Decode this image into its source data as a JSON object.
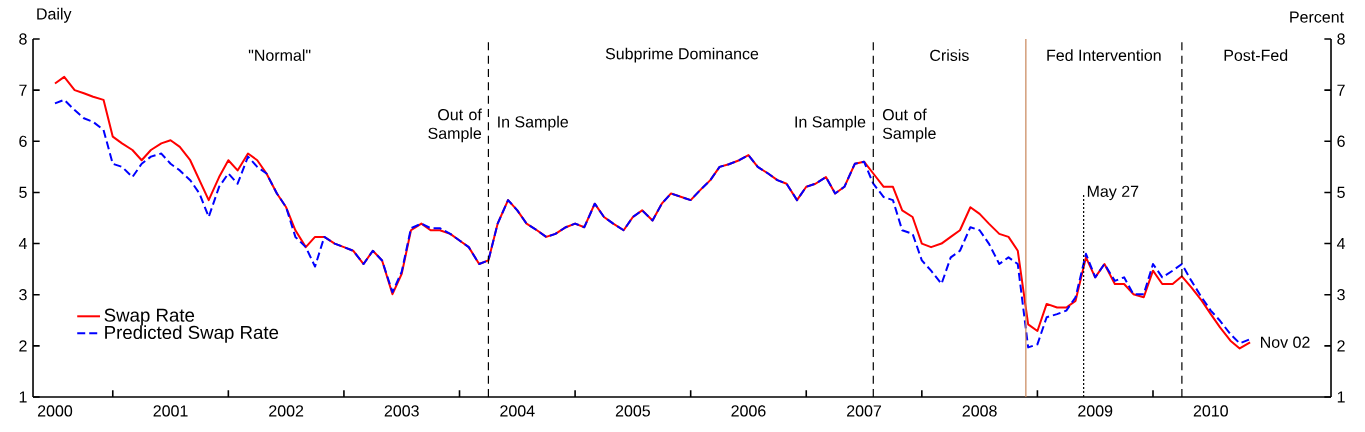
{
  "chart_data": {
    "type": "line",
    "ylabel": "Daily",
    "y2label": "Percent",
    "x": [
      "2000-07",
      "2000-08",
      "2000-09",
      "2000-10",
      "2000-11",
      "2000-12",
      "2001-01",
      "2001-02",
      "2001-03",
      "2001-04",
      "2001-05",
      "2001-06",
      "2001-07",
      "2001-08",
      "2001-09",
      "2001-10",
      "2001-11",
      "2001-12",
      "2002-01",
      "2002-02",
      "2002-03",
      "2002-04",
      "2002-05",
      "2002-06",
      "2002-07",
      "2002-08",
      "2002-09",
      "2002-10",
      "2002-11",
      "2002-12",
      "2003-01",
      "2003-02",
      "2003-03",
      "2003-04",
      "2003-05",
      "2003-06",
      "2003-07",
      "2003-08",
      "2003-09",
      "2003-10",
      "2003-11",
      "2003-12",
      "2004-01",
      "2004-02",
      "2004-03",
      "2004-04",
      "2004-05",
      "2004-06",
      "2004-07",
      "2004-08",
      "2004-09",
      "2004-10",
      "2004-11",
      "2004-12",
      "2005-01",
      "2005-02",
      "2005-03",
      "2005-04",
      "2005-05",
      "2005-06",
      "2005-07",
      "2005-08",
      "2005-09",
      "2005-10",
      "2005-11",
      "2005-12",
      "2006-01",
      "2006-02",
      "2006-03",
      "2006-04",
      "2006-05",
      "2006-06",
      "2006-07",
      "2006-08",
      "2006-09",
      "2006-10",
      "2006-11",
      "2006-12",
      "2007-01",
      "2007-02",
      "2007-03",
      "2007-04",
      "2007-05",
      "2007-06",
      "2007-07",
      "2007-08",
      "2007-09",
      "2007-10",
      "2007-11",
      "2007-12",
      "2008-01",
      "2008-02",
      "2008-03",
      "2008-04",
      "2008-05",
      "2008-06",
      "2008-07",
      "2008-08",
      "2008-09",
      "2008-10",
      "2008-11",
      "2008-12",
      "2009-01",
      "2009-02",
      "2009-03",
      "2009-04",
      "2009-05",
      "2009-06",
      "2009-07",
      "2009-08",
      "2009-09",
      "2009-10",
      "2009-11",
      "2009-12",
      "2010-01",
      "2010-02",
      "2010-03",
      "2010-04",
      "2010-05",
      "2010-06",
      "2010-07",
      "2010-08",
      "2010-09",
      "2010-10",
      "2010-11-02"
    ],
    "series": [
      {
        "name": "Swap Rate",
        "color": "#ff0000",
        "line_style": "solid",
        "values": [
          7.13,
          7.26,
          7.0,
          6.94,
          6.87,
          6.81,
          6.09,
          5.96,
          5.83,
          5.63,
          5.83,
          5.96,
          6.02,
          5.89,
          5.63,
          5.24,
          4.85,
          5.3,
          5.63,
          5.43,
          5.76,
          5.63,
          5.37,
          4.98,
          4.71,
          4.26,
          3.93,
          4.13,
          4.13,
          4.0,
          3.93,
          3.86,
          3.6,
          3.86,
          3.67,
          3.01,
          3.41,
          4.26,
          4.39,
          4.26,
          4.26,
          4.19,
          4.06,
          3.93,
          3.6,
          3.67,
          4.39,
          4.85,
          4.65,
          4.39,
          4.26,
          4.13,
          4.19,
          4.32,
          4.39,
          4.32,
          4.78,
          4.52,
          4.39,
          4.26,
          4.52,
          4.65,
          4.45,
          4.78,
          4.98,
          4.91,
          4.85,
          5.04,
          5.24,
          5.5,
          5.55,
          5.63,
          5.73,
          5.5,
          5.37,
          5.24,
          5.17,
          4.85,
          5.11,
          5.17,
          5.3,
          4.98,
          5.11,
          5.56,
          5.6,
          5.37,
          5.11,
          5.11,
          4.65,
          4.52,
          4.0,
          3.93,
          4.0,
          4.13,
          4.26,
          4.71,
          4.58,
          4.39,
          4.19,
          4.13,
          3.86,
          2.42,
          2.29,
          2.82,
          2.75,
          2.75,
          2.88,
          3.73,
          3.34,
          3.6,
          3.21,
          3.21,
          3.01,
          2.95,
          3.47,
          3.21,
          3.21,
          3.36,
          3.15,
          2.89,
          2.62,
          2.36,
          2.1,
          1.95,
          2.07
        ]
      },
      {
        "name": "Predicted Swap Rate",
        "color": "#0000ff",
        "line_style": "dashed",
        "values": [
          6.74,
          6.81,
          6.61,
          6.45,
          6.38,
          6.22,
          5.56,
          5.5,
          5.3,
          5.56,
          5.7,
          5.76,
          5.56,
          5.43,
          5.24,
          4.98,
          4.52,
          5.11,
          5.37,
          5.17,
          5.7,
          5.5,
          5.37,
          4.98,
          4.71,
          4.13,
          3.93,
          3.55,
          4.13,
          4.0,
          3.93,
          3.86,
          3.6,
          3.86,
          3.67,
          3.05,
          3.45,
          4.3,
          4.39,
          4.3,
          4.3,
          4.19,
          4.06,
          3.93,
          3.6,
          3.67,
          4.39,
          4.85,
          4.65,
          4.39,
          4.26,
          4.13,
          4.19,
          4.32,
          4.39,
          4.32,
          4.78,
          4.52,
          4.39,
          4.26,
          4.52,
          4.65,
          4.45,
          4.78,
          4.98,
          4.91,
          4.85,
          5.04,
          5.24,
          5.5,
          5.55,
          5.63,
          5.73,
          5.5,
          5.37,
          5.24,
          5.17,
          4.85,
          5.11,
          5.17,
          5.3,
          4.98,
          5.11,
          5.56,
          5.6,
          5.17,
          4.91,
          4.85,
          4.26,
          4.19,
          3.67,
          3.47,
          3.21,
          3.73,
          3.86,
          4.32,
          4.26,
          4.0,
          3.6,
          3.73,
          3.6,
          1.97,
          2.03,
          2.56,
          2.62,
          2.69,
          2.95,
          3.8,
          3.34,
          3.6,
          3.27,
          3.34,
          3.01,
          3.01,
          3.6,
          3.34,
          3.47,
          3.6,
          3.28,
          2.95,
          2.69,
          2.49,
          2.23,
          2.05,
          2.13
        ]
      }
    ],
    "xlim": [
      "2000-04-22",
      "2011-07-16"
    ],
    "xticks": [
      {
        "value": "2001-01-01",
        "label": null
      },
      {
        "value": "2002-01-01",
        "label": null
      },
      {
        "value": "2003-01-01",
        "label": null
      },
      {
        "value": "2004-01-01",
        "label": null
      },
      {
        "value": "2005-01-01",
        "label": null
      },
      {
        "value": "2006-01-01",
        "label": null
      },
      {
        "value": "2007-01-01",
        "label": null
      },
      {
        "value": "2008-01-01",
        "label": null
      },
      {
        "value": "2009-01-01",
        "label": null
      },
      {
        "value": "2010-01-01",
        "label": null
      },
      {
        "value": "2000-07-01",
        "label": "2000"
      },
      {
        "value": "2001-07-01",
        "label": "2001"
      },
      {
        "value": "2002-07-01",
        "label": "2002"
      },
      {
        "value": "2003-07-01",
        "label": "2003"
      },
      {
        "value": "2004-07-01",
        "label": "2004"
      },
      {
        "value": "2005-07-01",
        "label": "2005"
      },
      {
        "value": "2006-07-01",
        "label": "2006"
      },
      {
        "value": "2007-07-01",
        "label": "2007"
      },
      {
        "value": "2008-07-01",
        "label": "2008"
      },
      {
        "value": "2009-07-01",
        "label": "2009"
      },
      {
        "value": "2010-07-01",
        "label": "2010"
      }
    ],
    "ylim": [
      1,
      8
    ],
    "yticks": [
      1,
      2,
      3,
      4,
      5,
      6,
      7,
      8
    ],
    "y2lim": [
      1,
      8
    ],
    "y2ticks": [
      1,
      2,
      3,
      4,
      5,
      6,
      7,
      8
    ],
    "grid": false,
    "legend": "bottom left",
    "ref_lines": [
      {
        "axis": "x",
        "value": "2004-04-01",
        "color": "#000000",
        "line_style": "dashed"
      },
      {
        "axis": "x",
        "value": "2007-08-01",
        "color": "#000000",
        "line_style": "dashed"
      },
      {
        "axis": "x",
        "value": "2008-11-25",
        "color": "#c8865a",
        "line_style": "solid"
      },
      {
        "axis": "x",
        "value": "2009-05-27",
        "label": "May 27",
        "color": "#000000",
        "line_style": "dotted"
      },
      {
        "axis": "x",
        "value": "2010-03-31",
        "color": "#000000",
        "line_style": "dashed"
      }
    ],
    "annotations": [
      "\"Normal\"",
      "Subprime Dominance",
      "Crisis",
      "Fed Intervention",
      "Post-Fed",
      "Out of Sample",
      "In Sample",
      "In Sample",
      "Out of Sample",
      {
        "text": "Nov 02",
        "x": "2010-11-02",
        "y": 2.07
      }
    ]
  }
}
